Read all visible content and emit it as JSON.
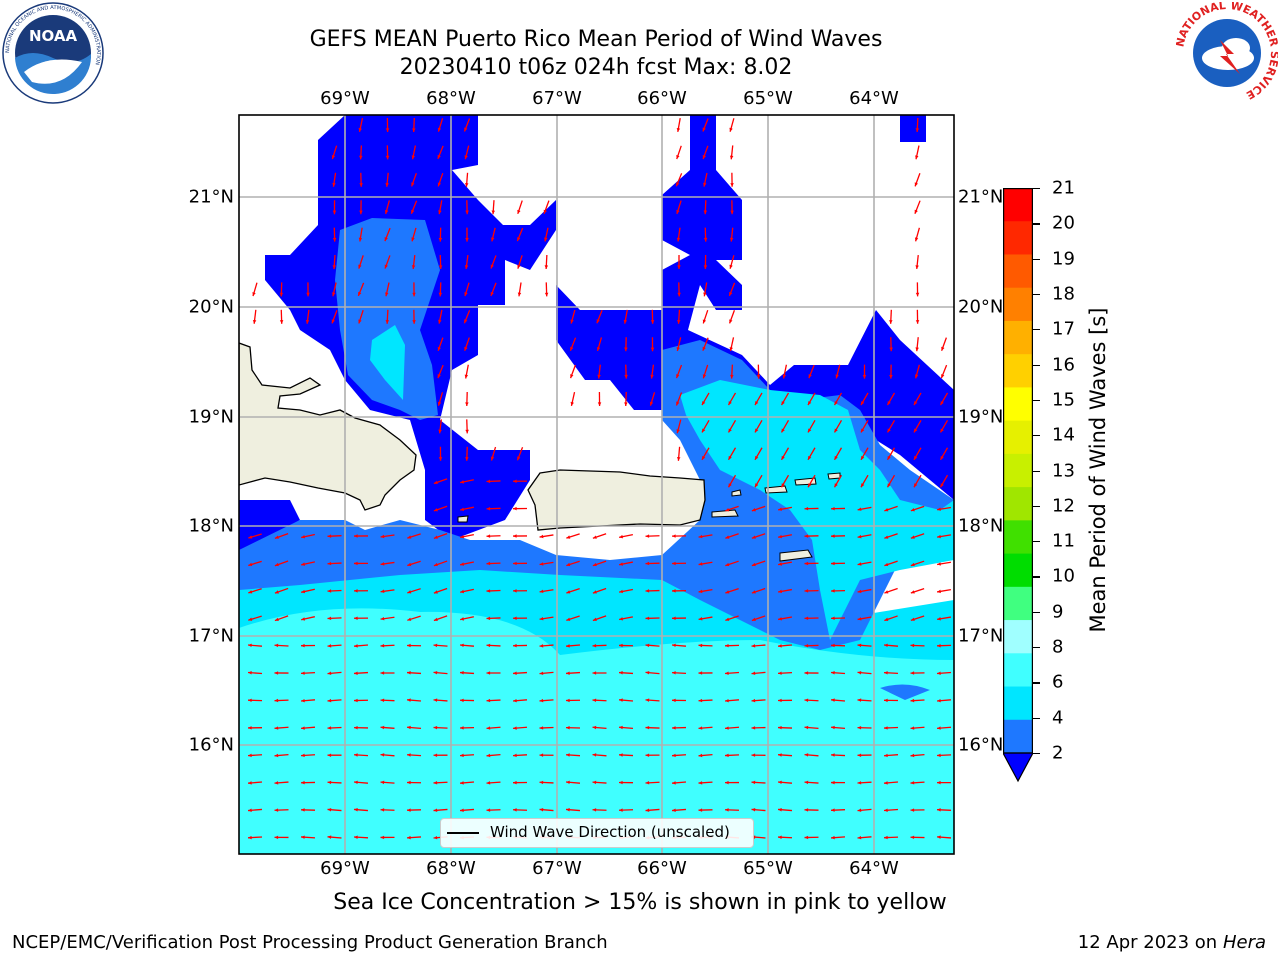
{
  "header": {
    "title_line1": "GEFS MEAN Puerto Rico Mean Period of Wind Waves",
    "title_line2": "20230410 t06z 024h fcst   Max: 8.02"
  },
  "logos": {
    "noaa_text": "NOAA",
    "noaa_ring_top": "NATIONAL OCEANIC AND ATMOSPHERIC ADMINISTRATION",
    "noaa_ring_bottom": "U.S. DEPARTMENT OF COMMERCE",
    "nws_ring": "NATIONAL WEATHER SERVICE"
  },
  "map": {
    "lon_labels": [
      "69°W",
      "68°W",
      "67°W",
      "66°W",
      "65°W",
      "64°W"
    ],
    "lat_labels": [
      "21°N",
      "20°N",
      "19°N",
      "18°N",
      "17°N",
      "16°N"
    ],
    "legend_label": "Wind Wave Direction (unscaled)",
    "arrow_color": "#ff0000",
    "land_color": "#efefdf"
  },
  "colorbar": {
    "title": "Mean Period of Wind Waves [s]",
    "ticks": [
      "2",
      "4",
      "6",
      "8",
      "9",
      "10",
      "11",
      "12",
      "13",
      "14",
      "15",
      "16",
      "17",
      "18",
      "19",
      "20",
      "21"
    ],
    "levels": [
      2,
      4,
      6,
      8,
      9,
      10,
      11,
      12,
      13,
      14,
      15,
      16,
      17,
      18,
      19,
      20,
      21
    ],
    "colors": [
      "#1e78ff",
      "#00e6ff",
      "#40ffff",
      "#a0ffff",
      "#40ff80",
      "#00dd00",
      "#40e000",
      "#a0e600",
      "#c8f000",
      "#e6f000",
      "#ffff00",
      "#ffd000",
      "#ffb000",
      "#ff8000",
      "#ff5a00",
      "#ff2800",
      "#ff0000"
    ],
    "under_color": "#0000ff"
  },
  "footer": {
    "sea_ice_note": "Sea Ice Concentration > 15% is shown in pink to yellow",
    "credit": "NCEP/EMC/Verification Post Processing Product Generation Branch",
    "date_prefix": "12 Apr 2023 on ",
    "host": "Hera"
  }
}
